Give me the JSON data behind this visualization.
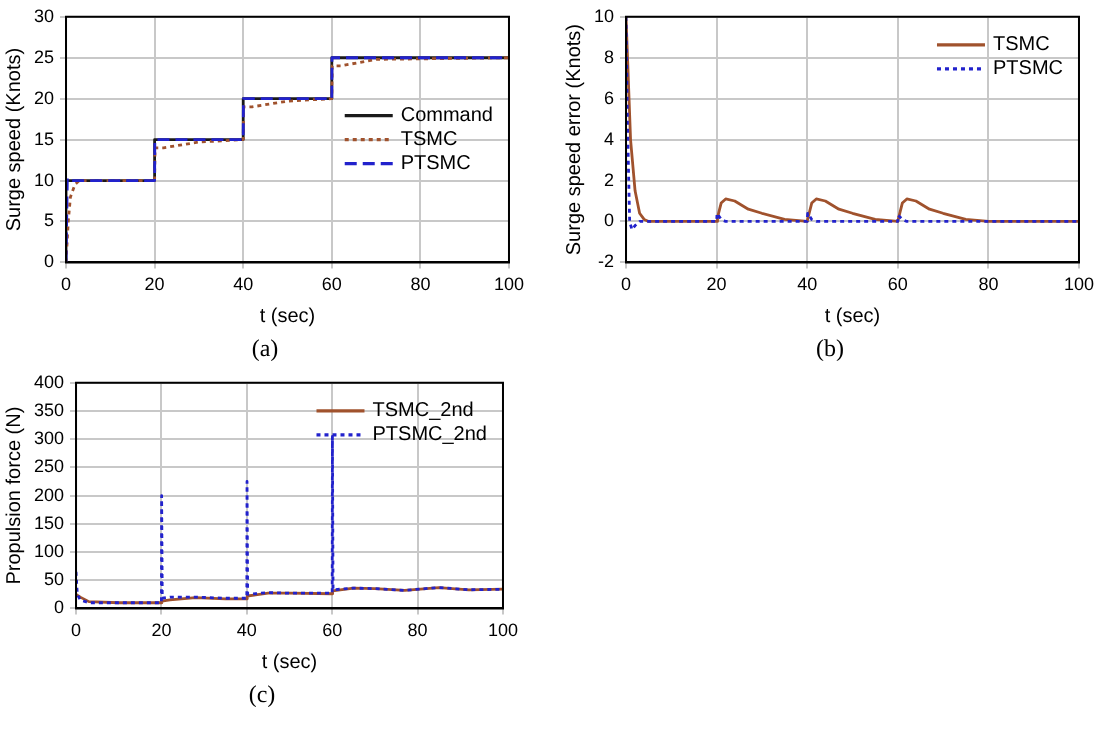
{
  "chart_data": [
    {
      "type": "line",
      "xlabel": "t (sec)",
      "ylabel": "Surge speed (Knots)",
      "annotations": [
        "(a)"
      ],
      "xlim": [
        0,
        100
      ],
      "xticks": [
        0,
        20,
        40,
        60,
        80,
        100
      ],
      "ylim": [
        0,
        30
      ],
      "yticks": [
        0,
        5,
        10,
        15,
        20,
        25,
        30
      ],
      "grid": true,
      "legend": "right",
      "series": [
        {
          "name": "Command",
          "color": "#1a1a1a",
          "line_style": "solid",
          "x": [
            0,
            0,
            20,
            20,
            40,
            40,
            60,
            60,
            100
          ],
          "values": [
            0,
            10,
            10,
            15,
            15,
            20,
            20,
            25,
            25
          ]
        },
        {
          "name": "TSMC",
          "color": "#a0522d",
          "line_style": "dotted",
          "x": [
            0,
            0.5,
            1,
            2,
            3,
            20,
            20.1,
            22,
            30,
            40,
            40.1,
            42,
            50,
            60,
            60.1,
            62,
            70,
            100
          ],
          "values": [
            0,
            5,
            8,
            9.5,
            10,
            10,
            14,
            14,
            14.7,
            15,
            19,
            19,
            19.7,
            20,
            24,
            24,
            24.8,
            25
          ]
        },
        {
          "name": "PTSMC",
          "color": "#2222cc",
          "line_style": "dashed",
          "x": [
            0,
            0.3,
            1,
            20,
            20.05,
            40,
            40.05,
            60,
            60.05,
            100
          ],
          "values": [
            0,
            10.3,
            10,
            10,
            15,
            15,
            20,
            20,
            25,
            25
          ]
        }
      ]
    },
    {
      "type": "line",
      "xlabel": "t (sec)",
      "ylabel": "Surge speed error (Knots)",
      "annotations": [
        "(b)"
      ],
      "xlim": [
        0,
        100
      ],
      "xticks": [
        0,
        20,
        40,
        60,
        80,
        100
      ],
      "ylim": [
        -2,
        10
      ],
      "yticks": [
        -2,
        0,
        2,
        4,
        6,
        8,
        10
      ],
      "grid": true,
      "legend": "top right",
      "series": [
        {
          "name": "TSMC",
          "color": "#a0522d",
          "line_style": "solid",
          "x": [
            0,
            0.5,
            1,
            2,
            3,
            4,
            5,
            20,
            20.2,
            21,
            22,
            24,
            27,
            30,
            35,
            40,
            40.2,
            41,
            42,
            44,
            47,
            50,
            55,
            60,
            60.2,
            61,
            62,
            64,
            67,
            70,
            75,
            80,
            100
          ],
          "values": [
            10,
            7,
            4,
            1.5,
            0.4,
            0.1,
            0,
            0,
            0.2,
            0.9,
            1.1,
            1,
            0.6,
            0.4,
            0.1,
            0,
            0.2,
            0.9,
            1.1,
            1,
            0.6,
            0.4,
            0.1,
            0,
            0.2,
            0.9,
            1.1,
            1,
            0.6,
            0.4,
            0.1,
            0,
            0
          ]
        },
        {
          "name": "PTSMC",
          "color": "#2222cc",
          "line_style": "dotted",
          "x": [
            0,
            0.3,
            0.8,
            1.3,
            2,
            3,
            20,
            20.1,
            21,
            22,
            40,
            40.1,
            41,
            42,
            60,
            60.1,
            61,
            62,
            100
          ],
          "values": [
            10,
            5,
            0,
            -0.4,
            -0.2,
            0,
            0,
            0.4,
            0.1,
            0,
            0,
            0.4,
            0.1,
            0,
            0,
            0.3,
            0.1,
            0,
            0
          ]
        }
      ]
    },
    {
      "type": "line",
      "xlabel": "t (sec)",
      "ylabel": "Propulsion force (N)",
      "annotations": [
        "(c)"
      ],
      "xlim": [
        0,
        100
      ],
      "xticks": [
        0,
        20,
        40,
        60,
        80,
        100
      ],
      "ylim": [
        0,
        400
      ],
      "yticks": [
        0,
        50,
        100,
        150,
        200,
        250,
        300,
        350,
        400
      ],
      "grid": true,
      "legend": "top right",
      "series": [
        {
          "name": "TSMC_2nd",
          "color": "#a0522d",
          "line_style": "solid",
          "x": [
            0,
            1,
            3,
            10,
            20,
            20.1,
            22,
            28,
            35,
            40,
            40.1,
            45,
            50,
            60,
            60.1,
            65,
            70,
            77,
            85,
            92,
            100
          ],
          "values": [
            25,
            20,
            12,
            10,
            10,
            13,
            15,
            19,
            17,
            17,
            22,
            27,
            27,
            26,
            31,
            36,
            35,
            32,
            37,
            33,
            34
          ]
        },
        {
          "name": "PTSMC_2nd",
          "color": "#2222cc",
          "line_style": "dotted",
          "x": [
            0,
            0.3,
            1,
            3,
            10,
            20,
            20.05,
            20.2,
            22,
            28,
            35,
            40,
            40.05,
            40.2,
            45,
            50,
            60,
            60.05,
            60.2,
            65,
            70,
            77,
            85,
            92,
            100
          ],
          "values": [
            65,
            25,
            15,
            10,
            10,
            10,
            200,
            18,
            20,
            20,
            18,
            18,
            225,
            25,
            28,
            27,
            27,
            305,
            33,
            36,
            35,
            32,
            37,
            33,
            34
          ]
        }
      ]
    }
  ]
}
